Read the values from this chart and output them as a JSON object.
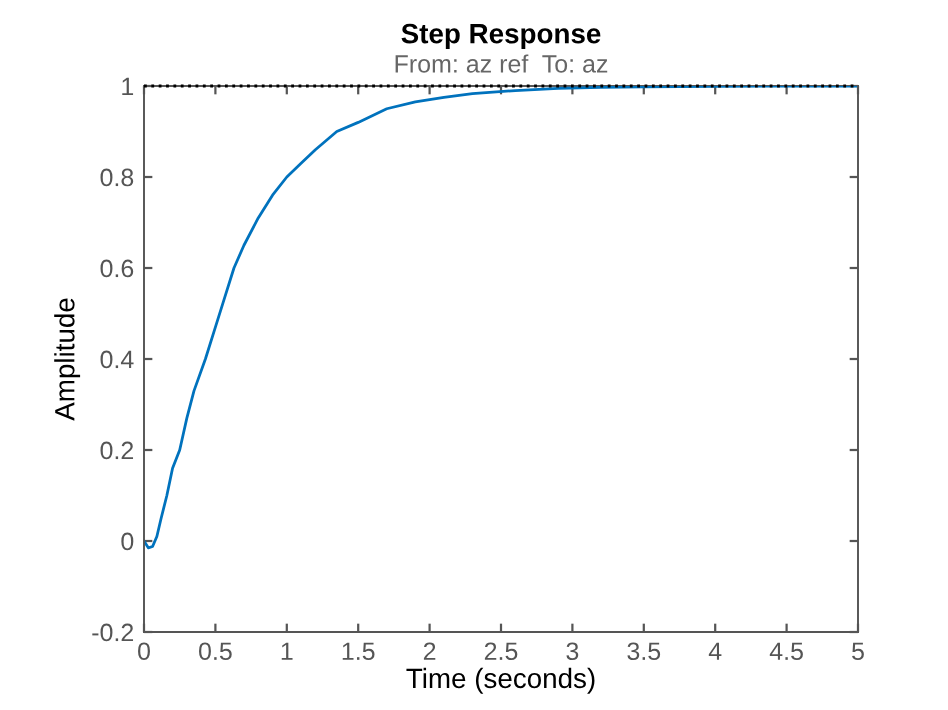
{
  "chart_data": {
    "type": "line",
    "title": "Step Response",
    "subtitle": "From: az ref  To: az",
    "xlabel": "Time (seconds)",
    "ylabel": "Amplitude",
    "series": [
      {
        "color": "#0072bd",
        "x": [
          0,
          0.03,
          0.06,
          0.09,
          0.12,
          0.16,
          0.2,
          0.25,
          0.3,
          0.35,
          0.43,
          0.5,
          0.55,
          0.63,
          0.7,
          0.8,
          0.9,
          1.0,
          1.1,
          1.2,
          1.35,
          1.5,
          1.7,
          1.9,
          2.1,
          2.3,
          2.6,
          2.9,
          3.2,
          3.5,
          4.0,
          4.5,
          5.0
        ],
        "values": [
          0,
          -0.015,
          -0.012,
          0.01,
          0.05,
          0.1,
          0.16,
          0.2,
          0.27,
          0.33,
          0.4,
          0.47,
          0.52,
          0.6,
          0.65,
          0.71,
          0.76,
          0.8,
          0.83,
          0.86,
          0.9,
          0.92,
          0.95,
          0.965,
          0.975,
          0.983,
          0.99,
          0.995,
          0.997,
          0.998,
          0.999,
          1.0,
          1.0
        ]
      }
    ],
    "ref_lines": [
      {
        "axis": "y",
        "value": 1,
        "color": "#000000",
        "line_style": "dotted"
      }
    ],
    "xlim": [
      0,
      5
    ],
    "ylim": [
      -0.2,
      1
    ],
    "xticks": [
      0,
      0.5,
      1,
      1.5,
      2,
      2.5,
      3,
      3.5,
      4,
      4.5,
      5
    ],
    "yticks": [
      -0.2,
      0,
      0.2,
      0.4,
      0.6,
      0.8,
      1
    ],
    "grid": false,
    "legend": false
  }
}
